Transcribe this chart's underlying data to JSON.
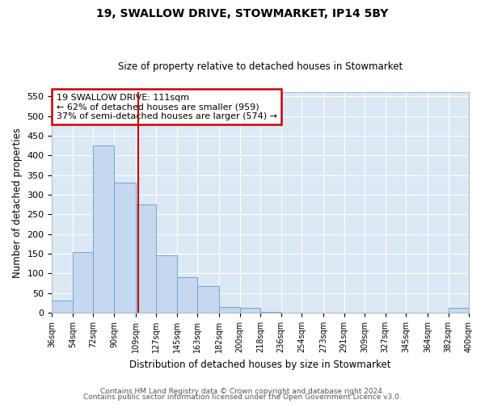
{
  "title1": "19, SWALLOW DRIVE, STOWMARKET, IP14 5BY",
  "title2": "Size of property relative to detached houses in Stowmarket",
  "xlabel": "Distribution of detached houses by size in Stowmarket",
  "ylabel": "Number of detached properties",
  "bar_color": "#c5d8f0",
  "bar_edge_color": "#6aaad4",
  "background_color": "#dde8f5",
  "grid_color": "#ffffff",
  "property_line_x": 111,
  "property_line_color": "#cc0000",
  "annotation_text": "19 SWALLOW DRIVE: 111sqm\n← 62% of detached houses are smaller (959)\n37% of semi-detached houses are larger (574) →",
  "annotation_box_color": "#ffffff",
  "annotation_box_edge": "#cc0000",
  "bin_edges": [
    36,
    54,
    72,
    90,
    109,
    127,
    145,
    163,
    182,
    200,
    218,
    236,
    254,
    273,
    291,
    309,
    327,
    345,
    364,
    382,
    400
  ],
  "bin_counts": [
    30,
    155,
    425,
    330,
    275,
    145,
    90,
    68,
    15,
    12,
    2,
    0,
    1,
    0,
    0,
    0,
    0,
    1,
    0,
    12
  ],
  "ylim": [
    0,
    560
  ],
  "yticks": [
    0,
    50,
    100,
    150,
    200,
    250,
    300,
    350,
    400,
    450,
    500,
    550
  ],
  "footer_text1": "Contains HM Land Registry data © Crown copyright and database right 2024.",
  "footer_text2": "Contains public sector information licensed under the Open Government Licence v3.0."
}
